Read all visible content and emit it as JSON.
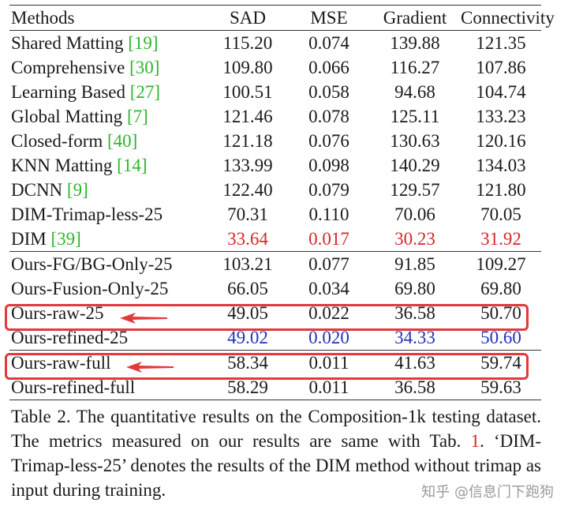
{
  "table": {
    "headers": [
      "Methods",
      "SAD",
      "MSE",
      "Gradient",
      "Connectivity"
    ],
    "rows": [
      {
        "method": "Shared Matting ",
        "cite": "[19]",
        "sad": "115.20",
        "mse": "0.074",
        "grad": "139.88",
        "conn": "121.35"
      },
      {
        "method": "Comprehensive ",
        "cite": "[30]",
        "sad": "109.80",
        "mse": "0.066",
        "grad": "116.27",
        "conn": "107.86"
      },
      {
        "method": "Learning Based ",
        "cite": "[27]",
        "sad": "100.51",
        "mse": "0.058",
        "grad": "94.68",
        "conn": "104.74"
      },
      {
        "method": "Global Matting ",
        "cite": "[7]",
        "sad": "121.46",
        "mse": "0.078",
        "grad": "125.11",
        "conn": "133.23"
      },
      {
        "method": "Closed-form ",
        "cite": "[40]",
        "sad": "121.18",
        "mse": "0.076",
        "grad": "130.63",
        "conn": "120.16"
      },
      {
        "method": "KNN Matting ",
        "cite": "[14]",
        "sad": "133.99",
        "mse": "0.098",
        "grad": "140.29",
        "conn": "134.03"
      },
      {
        "method": "DCNN ",
        "cite": "[9]",
        "sad": "122.40",
        "mse": "0.079",
        "grad": "129.57",
        "conn": "121.80"
      },
      {
        "method": "DIM-Trimap-less-25",
        "cite": "",
        "sad": "70.31",
        "mse": "0.110",
        "grad": "70.06",
        "conn": "70.05"
      },
      {
        "method": "DIM ",
        "cite": "[39]",
        "sad": "33.64",
        "mse": "0.017",
        "grad": "30.23",
        "conn": "31.92"
      },
      {
        "method": "Ours-FG/BG-Only-25",
        "cite": "",
        "sad": "103.21",
        "mse": "0.077",
        "grad": "91.85",
        "conn": "109.27"
      },
      {
        "method": "Ours-Fusion-Only-25",
        "cite": "",
        "sad": "66.05",
        "mse": "0.034",
        "grad": "69.80",
        "conn": "69.80"
      },
      {
        "method": "Ours-raw-25",
        "cite": "",
        "sad": "49.05",
        "mse": "0.022",
        "grad": "36.58",
        "conn": "50.70"
      },
      {
        "method": "Ours-refined-25",
        "cite": "",
        "sad": "49.02",
        "mse": "0.020",
        "grad": "34.33",
        "conn": "50.60"
      },
      {
        "method": "Ours-raw-full",
        "cite": "",
        "sad": "58.34",
        "mse": "0.011",
        "grad": "41.63",
        "conn": "59.74"
      },
      {
        "method": "Ours-refined-full",
        "cite": "",
        "sad": "58.29",
        "mse": "0.011",
        "grad": "36.58",
        "conn": "59.63"
      }
    ]
  },
  "caption": {
    "part1": "Table 2. The quantitative results on the Composition-1k testing dataset.  The metrics measured on our results are same with Tab. ",
    "ref": "1",
    "part2": ".  ‘DIM-Trimap-less-25’ denotes the results of the DIM method without trimap as input during training."
  },
  "watermark": "知乎 @信息门下跑狗",
  "colors": {
    "citation": "#2db52d",
    "best": "#d6262a",
    "second": "#2233bb",
    "annotation": "#e23a3a"
  },
  "icons": [
    "arrow-left-icon"
  ]
}
